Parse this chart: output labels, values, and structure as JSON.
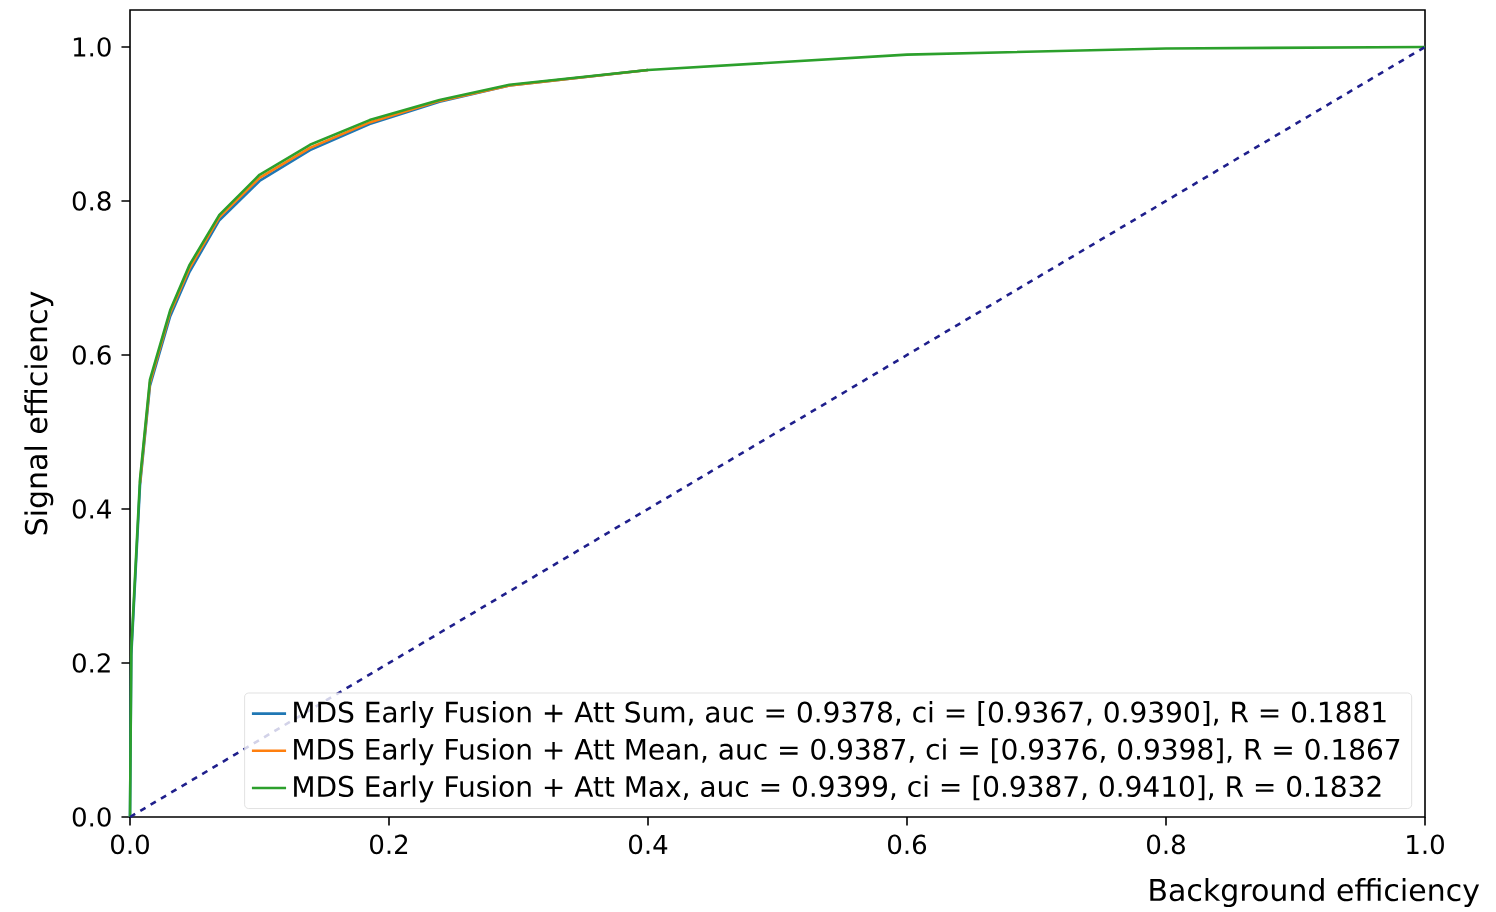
{
  "chart_data": {
    "type": "line",
    "xlabel": "Background efficiency",
    "ylabel": "Signal efficiency",
    "xlim": [
      0,
      1.0
    ],
    "ylim": [
      0,
      1.048
    ],
    "xticks": [
      {
        "value": 0,
        "label": "0.0"
      },
      0.2,
      0.4,
      0.6,
      0.8,
      {
        "value": 1,
        "label": "1.0"
      }
    ],
    "yticks": [
      {
        "value": 0,
        "label": "0.0"
      },
      0.2,
      0.4,
      0.6,
      0.8,
      {
        "value": 1,
        "label": "1.0"
      }
    ],
    "legend": "bottom right",
    "grid": false,
    "marker": "none",
    "series": [
      {
        "name": "MDS Early Fusion + Att Sum,  auc = 0.9378, ci = [0.9367, 0.9390], R = 0.1881",
        "color": "#1f77b4",
        "x": [
          0,
          0.001,
          0.0077,
          0.0154,
          0.031,
          0.046,
          0.069,
          0.1,
          0.139,
          0.185,
          0.239,
          0.293,
          0.4
        ],
        "values": [
          0,
          0.21,
          0.43,
          0.56,
          0.65,
          0.708,
          0.775,
          0.826,
          0.866,
          0.9,
          0.929,
          0.95,
          0.97
        ]
      },
      {
        "name": "MDS Early Fusion + Att Mean,  auc = 0.9387, ci = [0.9376, 0.9398], R = 0.1867",
        "color": "#ff7f0e",
        "x": [
          0.0077,
          0.0154,
          0.031,
          0.046,
          0.069,
          0.1,
          0.139,
          0.185,
          0.239,
          0.293,
          0.4
        ],
        "values": [
          0.434,
          0.564,
          0.655,
          0.713,
          0.779,
          0.83,
          0.869,
          0.902,
          0.93,
          0.95,
          0.97
        ]
      },
      {
        "name": "MDS Early Fusion + Att Max,  auc = 0.9399, ci = [0.9387, 0.9410], R = 0.1832",
        "color": "#2ca02c",
        "x": [
          0,
          0.001,
          0.0077,
          0.0154,
          0.031,
          0.046,
          0.069,
          0.1,
          0.139,
          0.185,
          0.239,
          0.293,
          0.4,
          0.6,
          0.8,
          1.0
        ],
        "values": [
          0,
          0.217,
          0.438,
          0.568,
          0.658,
          0.717,
          0.782,
          0.834,
          0.873,
          0.905,
          0.931,
          0.951,
          0.97,
          0.99,
          0.998,
          1.0
        ]
      },
      {
        "color": "#1f1f8c",
        "line_style": "dashed",
        "x": [
          0,
          1.0
        ],
        "values": [
          0,
          1.0
        ]
      }
    ]
  }
}
